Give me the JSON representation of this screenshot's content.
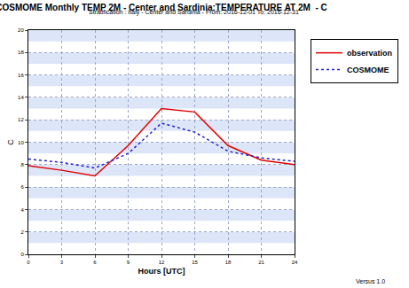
{
  "chart_data": {
    "type": "line",
    "title": "COSMOME Monthly TEMP 2M - Center and Sardinia:TEMPERATURE AT 2M  - C",
    "subtitle": "Stratification : Italy - Center and Sardinia - From: 2016-12-01 To: 2016-12-31",
    "x_label": "Hours [UTC]",
    "y_label": "C",
    "footer": "Versus 1.0",
    "x": [
      0,
      3,
      6,
      9,
      12,
      15,
      18,
      21,
      24
    ],
    "series": [
      {
        "name": "observation",
        "color": "#e00000",
        "line_style": "solid",
        "values": [
          7.9,
          7.5,
          7.0,
          9.7,
          13.0,
          12.7,
          9.7,
          8.4,
          8.0
        ]
      },
      {
        "name": "COSMOME",
        "color": "#2020d0",
        "line_style": "dot",
        "values": [
          8.5,
          8.2,
          7.7,
          9.0,
          11.7,
          10.9,
          9.2,
          8.6,
          8.3
        ]
      }
    ],
    "xlim": [
      0,
      24
    ],
    "xticks": [
      0,
      3,
      6,
      9,
      12,
      15,
      18,
      21,
      24
    ],
    "ylim": [
      0,
      20
    ],
    "yticks": [
      0,
      2,
      4,
      6,
      8,
      10,
      12,
      14,
      16,
      18,
      20
    ],
    "grid": true,
    "legend": "upper right"
  }
}
